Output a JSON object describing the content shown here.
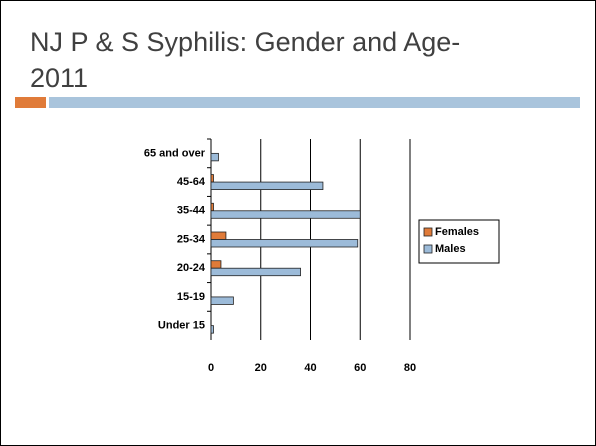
{
  "chart_data": {
    "type": "hbar",
    "title": [
      "NJ P & S  Syphilis: Gender and Age-",
      "2011"
    ],
    "categories": [
      "65 and over",
      "45-64",
      "35-44",
      "25-34",
      "20-24",
      "15-19",
      "Under 15"
    ],
    "series": [
      {
        "name": "Females",
        "color": "#e07b39",
        "values": [
          0,
          1,
          1,
          6,
          4,
          0,
          0
        ]
      },
      {
        "name": "Males",
        "color": "#9cbbd9",
        "values": [
          3,
          45,
          60,
          59,
          36,
          9,
          1
        ]
      }
    ],
    "xlim": [
      0,
      80
    ],
    "xticks": [
      0,
      20,
      40,
      60,
      80
    ],
    "grid": true,
    "legend": "right"
  }
}
